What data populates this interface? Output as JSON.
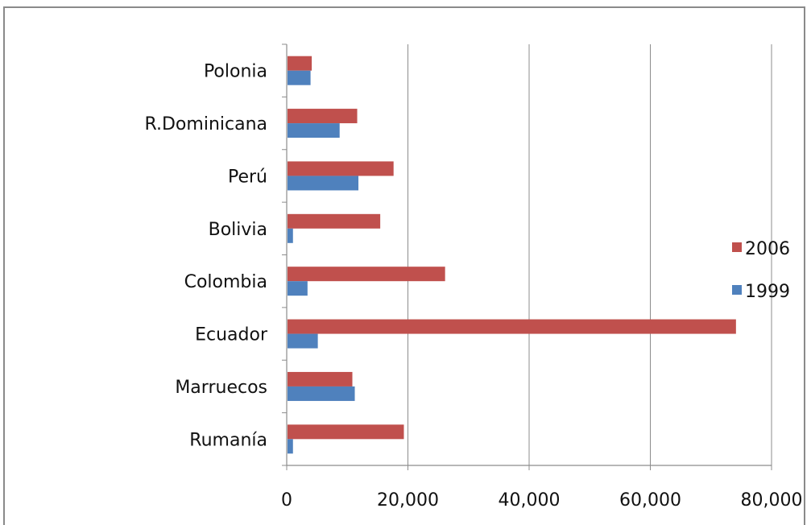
{
  "chart_data": {
    "type": "bar",
    "orientation": "horizontal",
    "categories": [
      "Polonia",
      "R.Dominicana",
      "Perú",
      "Bolivia",
      "Colombia",
      "Ecuador",
      "Marruecos",
      "Rumanía"
    ],
    "series": [
      {
        "name": "2006",
        "color": "#c0504d",
        "values": [
          4000,
          11500,
          17500,
          15300,
          26000,
          74000,
          10700,
          19200
        ]
      },
      {
        "name": "1999",
        "color": "#4f81bd",
        "values": [
          3800,
          8600,
          11700,
          900,
          3300,
          5000,
          11100,
          900
        ]
      }
    ],
    "xlim": [
      0,
      80000
    ],
    "xticks": [
      "0",
      "20,000",
      "40,000",
      "60,000",
      "80,000"
    ],
    "grid": "vertical",
    "legend": "right",
    "title": "",
    "xlabel": "",
    "ylabel": ""
  }
}
